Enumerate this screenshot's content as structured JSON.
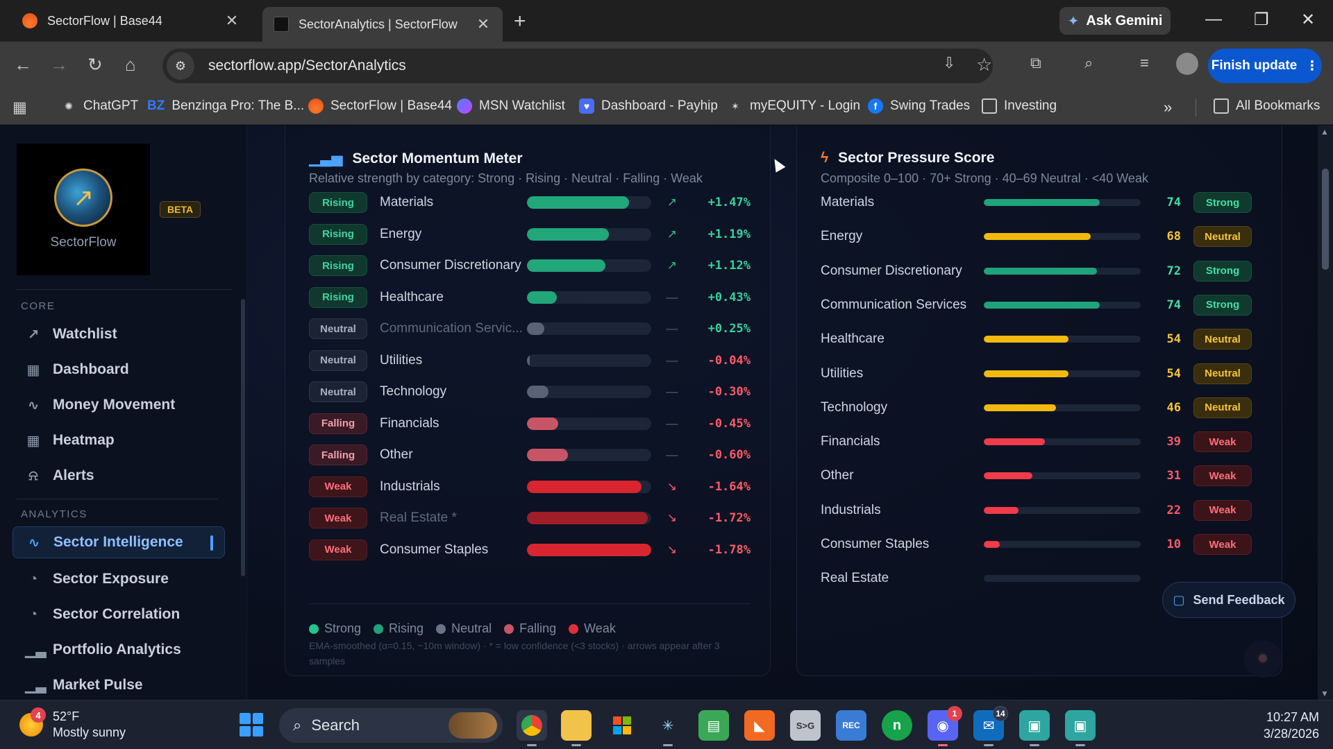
{
  "browser": {
    "tabs": [
      {
        "title": "SectorFlow | Base44",
        "close": "✕"
      },
      {
        "title": "SectorAnalytics | SectorFlow",
        "close": "✕"
      }
    ],
    "new_tab": "+",
    "gemini_label": "Ask Gemini",
    "url": "sectorflow.app/SectorAnalytics",
    "finish_update": "Finish update",
    "bookmarks": [
      {
        "label": "ChatGPT",
        "icon": "chatgpt-icon"
      },
      {
        "label": "Benzinga Pro: The B...",
        "icon": "benzinga-icon",
        "prefix": "BZ"
      },
      {
        "label": "SectorFlow | Base44",
        "icon": "base44-icon"
      },
      {
        "label": "MSN Watchlist",
        "icon": "msn-icon"
      },
      {
        "label": "Dashboard - Payhip",
        "icon": "payhip-icon"
      },
      {
        "label": "myEQUITY - Login",
        "icon": "myequity-icon"
      },
      {
        "label": "Swing Trades",
        "icon": "facebook-icon"
      },
      {
        "label": "Investing",
        "icon": "folder-icon"
      }
    ],
    "all_bookmarks": "All Bookmarks"
  },
  "sidebar": {
    "logo_text": "SectorFlow",
    "beta": "BETA",
    "sections": [
      {
        "label": "CORE",
        "items": [
          {
            "label": "Watchlist",
            "icon": "trend-icon"
          },
          {
            "label": "Dashboard",
            "icon": "grid-icon"
          },
          {
            "label": "Money Movement",
            "icon": "pulse-icon"
          },
          {
            "label": "Heatmap",
            "icon": "grid-icon"
          },
          {
            "label": "Alerts",
            "icon": "bell-icon"
          }
        ]
      },
      {
        "label": "ANALYTICS",
        "items": [
          {
            "label": "Sector Intelligence",
            "icon": "pulse-icon",
            "active": true
          },
          {
            "label": "Sector Exposure",
            "icon": "pie-icon"
          },
          {
            "label": "Sector Correlation",
            "icon": "pie-icon"
          },
          {
            "label": "Portfolio Analytics",
            "icon": "bar-icon"
          },
          {
            "label": "Market Pulse",
            "icon": "bar-icon"
          }
        ]
      }
    ]
  },
  "momentum": {
    "title": "Sector Momentum Meter",
    "subtitle": "Relative strength by category: Strong · Rising · Neutral · Falling · Weak",
    "rows": [
      {
        "status": "Rising",
        "name": "Materials",
        "strength": 0.82,
        "arrow": "↗",
        "change": "+1.47%",
        "color": "#22a77a"
      },
      {
        "status": "Rising",
        "name": "Energy",
        "strength": 0.66,
        "arrow": "↗",
        "change": "+1.19%",
        "color": "#22a77a"
      },
      {
        "status": "Rising",
        "name": "Consumer Discretionary",
        "strength": 0.63,
        "arrow": "↗",
        "change": "+1.12%",
        "color": "#22a77a"
      },
      {
        "status": "Rising",
        "name": "Healthcare",
        "strength": 0.24,
        "arrow": "—",
        "change": "+0.43%",
        "color": "#22a77a"
      },
      {
        "status": "Neutral",
        "name": "Communication Servic...",
        "strength": 0.14,
        "arrow": "—",
        "change": "+0.25%",
        "color": "#5a6376",
        "dim": true
      },
      {
        "status": "Neutral",
        "name": "Utilities",
        "strength": 0.02,
        "arrow": "—",
        "change": "-0.04%",
        "color": "#5a6376"
      },
      {
        "status": "Neutral",
        "name": "Technology",
        "strength": 0.17,
        "arrow": "—",
        "change": "-0.30%",
        "color": "#5a6376"
      },
      {
        "status": "Falling",
        "name": "Financials",
        "strength": 0.25,
        "arrow": "—",
        "change": "-0.45%",
        "color": "#c85566"
      },
      {
        "status": "Falling",
        "name": "Other",
        "strength": 0.33,
        "arrow": "—",
        "change": "-0.60%",
        "color": "#c85566"
      },
      {
        "status": "Weak",
        "name": "Industrials",
        "strength": 0.92,
        "arrow": "↘",
        "change": "-1.64%",
        "color": "#d9252f"
      },
      {
        "status": "Weak",
        "name": "Real Estate *",
        "strength": 0.97,
        "arrow": "↘",
        "change": "-1.72%",
        "color": "#a01e28",
        "dim": true
      },
      {
        "status": "Weak",
        "name": "Consumer Staples",
        "strength": 1.0,
        "arrow": "↘",
        "change": "-1.78%",
        "color": "#d9252f"
      }
    ],
    "legend": [
      {
        "label": "Strong",
        "color": "#22c58e"
      },
      {
        "label": "Rising",
        "color": "#1fa37a"
      },
      {
        "label": "Neutral",
        "color": "#6b7486"
      },
      {
        "label": "Falling",
        "color": "#c85566"
      },
      {
        "label": "Weak",
        "color": "#e0303a"
      }
    ],
    "footnote": "EMA-smoothed (α=0.15, ~10m window) · * = low confidence (<3 stocks) · arrows appear after 3 samples"
  },
  "pressure": {
    "title": "Sector Pressure Score",
    "subtitle": "Composite 0–100 · 70+ Strong · 40–69 Neutral · <40 Weak",
    "rows": [
      {
        "name": "Materials",
        "score": 74,
        "label": "Strong",
        "kind": "strong",
        "color": "#1fa37a"
      },
      {
        "name": "Energy",
        "score": 68,
        "label": "Neutral",
        "kind": "neutral",
        "color": "#f2b90f"
      },
      {
        "name": "Consumer Discretionary",
        "score": 72,
        "label": "Strong",
        "kind": "strong",
        "color": "#1fa37a"
      },
      {
        "name": "Communication Services",
        "score": 74,
        "label": "Strong",
        "kind": "strong",
        "color": "#1fa37a"
      },
      {
        "name": "Healthcare",
        "score": 54,
        "label": "Neutral",
        "kind": "neutral",
        "color": "#f2b90f"
      },
      {
        "name": "Utilities",
        "score": 54,
        "label": "Neutral",
        "kind": "neutral",
        "color": "#f2b90f"
      },
      {
        "name": "Technology",
        "score": 46,
        "label": "Neutral",
        "kind": "neutral",
        "color": "#f2b90f"
      },
      {
        "name": "Financials",
        "score": 39,
        "label": "Weak",
        "kind": "weak",
        "color": "#ef3b4a"
      },
      {
        "name": "Other",
        "score": 31,
        "label": "Weak",
        "kind": "weak",
        "color": "#ef3b4a"
      },
      {
        "name": "Industrials",
        "score": 22,
        "label": "Weak",
        "kind": "weak",
        "color": "#ef3b4a"
      },
      {
        "name": "Consumer Staples",
        "score": 10,
        "label": "Weak",
        "kind": "weak",
        "color": "#ef3b4a"
      },
      {
        "name": "Real Estate",
        "score": null,
        "label": "",
        "kind": "",
        "color": "#ef3b4a"
      }
    ]
  },
  "feedback_label": "Send Feedback",
  "taskbar": {
    "weather_temp": "52°F",
    "weather_desc": "Mostly sunny",
    "weather_badge": "4",
    "search": "Search",
    "time": "10:27 AM",
    "date": "3/28/2026",
    "badges": {
      "outlook": "14",
      "discord": "1"
    }
  }
}
